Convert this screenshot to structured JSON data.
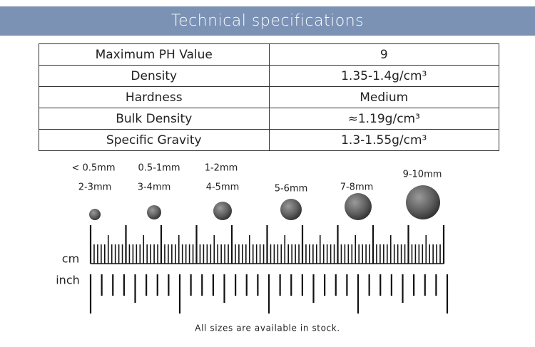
{
  "header": {
    "title": "Technical specifications"
  },
  "table": {
    "rows": [
      [
        "Maximum PH Value",
        "9"
      ],
      [
        "Density",
        "1.35-1.4g/cm³"
      ],
      [
        "Hardness",
        "Medium"
      ],
      [
        "Bulk Density",
        "≈1.19g/cm³"
      ],
      [
        "Specific Gravity",
        "1.3-1.55g/cm³"
      ]
    ]
  },
  "sizes": {
    "small": [
      "< 0.5mm",
      "0.5-1mm",
      "1-2mm"
    ],
    "large": [
      "2-3mm",
      "3-4mm",
      "4-5mm",
      "5-6mm",
      "7-8mm",
      "9-10mm"
    ]
  },
  "ruler": {
    "cm": "cm",
    "inch": "inch"
  },
  "footer": "All sizes are available in stock."
}
